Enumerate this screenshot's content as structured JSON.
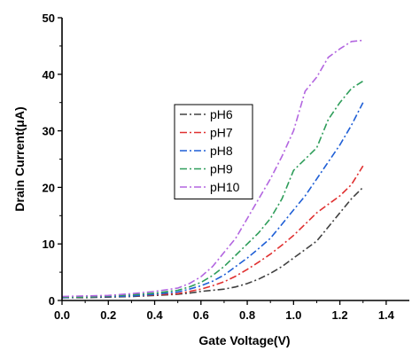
{
  "chart_data": {
    "type": "line",
    "title": "",
    "xlabel": "Gate Voltage(V)",
    "ylabel": "Drain Current(μA)",
    "xlim": [
      0.0,
      1.5
    ],
    "ylim": [
      0,
      50
    ],
    "xticks": [
      "0.0",
      "0.2",
      "0.4",
      "0.6",
      "0.8",
      "1.0",
      "1.2",
      "1.4"
    ],
    "yticks": [
      "0",
      "10",
      "20",
      "30",
      "40",
      "50"
    ],
    "grid": false,
    "legend_position": "center-left",
    "x": [
      0.0,
      0.1,
      0.2,
      0.3,
      0.4,
      0.5,
      0.55,
      0.6,
      0.65,
      0.7,
      0.75,
      0.8,
      0.85,
      0.9,
      0.95,
      1.0,
      1.05,
      1.1,
      1.15,
      1.2,
      1.25,
      1.3
    ],
    "series": [
      {
        "name": "pH6",
        "color": "#404040",
        "values": [
          0.5,
          0.5,
          0.6,
          0.7,
          0.9,
          1.1,
          1.3,
          1.6,
          1.8,
          2.0,
          2.4,
          3.0,
          3.8,
          4.8,
          6.0,
          7.5,
          9.0,
          10.5,
          13.0,
          15.5,
          18.0,
          20.0
        ]
      },
      {
        "name": "pH7",
        "color": "#e03030",
        "values": [
          0.5,
          0.6,
          0.7,
          0.8,
          1.0,
          1.2,
          1.6,
          2.0,
          2.6,
          3.3,
          4.3,
          5.5,
          6.8,
          8.2,
          9.8,
          11.5,
          13.5,
          15.5,
          17.0,
          18.5,
          20.5,
          23.8
        ]
      },
      {
        "name": "pH8",
        "color": "#1f5fd6",
        "values": [
          0.5,
          0.6,
          0.7,
          0.8,
          1.1,
          1.5,
          2.0,
          2.6,
          3.4,
          4.5,
          6.0,
          7.5,
          9.2,
          11.0,
          13.5,
          16.0,
          18.5,
          21.5,
          24.5,
          27.5,
          31.0,
          35.0
        ]
      },
      {
        "name": "pH9",
        "color": "#2e9d5a",
        "values": [
          0.6,
          0.6,
          0.8,
          1.0,
          1.3,
          1.8,
          2.4,
          3.2,
          4.4,
          6.0,
          8.0,
          10.0,
          12.0,
          14.5,
          18.0,
          23.0,
          25.0,
          27.0,
          32.0,
          35.0,
          37.5,
          38.8
        ]
      },
      {
        "name": "pH10",
        "color": "#b366e0",
        "values": [
          0.7,
          0.8,
          0.9,
          1.2,
          1.6,
          2.2,
          3.0,
          4.2,
          6.0,
          8.5,
          11.0,
          14.5,
          18.0,
          21.5,
          25.5,
          30.0,
          37.0,
          39.5,
          43.0,
          44.5,
          45.8,
          46.0
        ]
      }
    ]
  }
}
